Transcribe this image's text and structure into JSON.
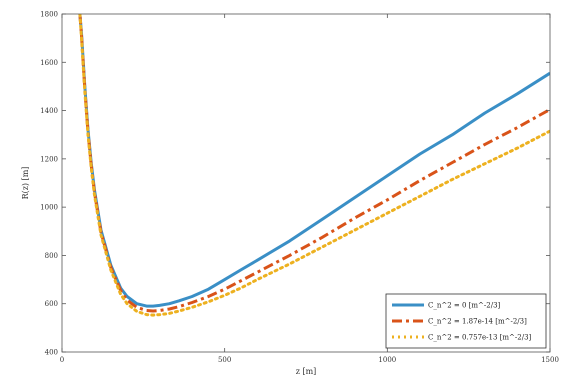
{
  "chart_data": {
    "type": "line",
    "xlabel": "z [m]",
    "ylabel": "R(z) [m]",
    "xlim": [
      0,
      1500
    ],
    "ylim": [
      400,
      1800
    ],
    "xticks": [
      0,
      500,
      1000,
      1500
    ],
    "yticks": [
      400,
      600,
      800,
      1000,
      1200,
      1400,
      1600,
      1800
    ],
    "grid": false,
    "legend_position": "bottom-right",
    "series": [
      {
        "name": "C_n^2 = 0 [m^-2/3]",
        "color": "#3a8fc6",
        "style": "solid",
        "x": [
          55,
          60,
          70,
          80,
          90,
          100,
          120,
          150,
          180,
          200,
          230,
          260,
          280,
          300,
          330,
          360,
          400,
          450,
          500,
          550,
          600,
          700,
          800,
          900,
          1000,
          1100,
          1200,
          1300,
          1400,
          1500
        ],
        "y": [
          1800,
          1720,
          1500,
          1320,
          1180,
          1070,
          905,
          760,
          665,
          630,
          600,
          590,
          590,
          593,
          600,
          612,
          630,
          660,
          700,
          740,
          780,
          860,
          950,
          1040,
          1130,
          1220,
          1300,
          1390,
          1470,
          1555
        ]
      },
      {
        "name": "C_n^2 = 1.87e-14 [m^-2/3]",
        "color": "#d95319",
        "style": "dashdot",
        "x": [
          55,
          60,
          70,
          80,
          90,
          100,
          120,
          150,
          180,
          200,
          230,
          260,
          280,
          300,
          330,
          360,
          400,
          450,
          500,
          550,
          600,
          700,
          800,
          900,
          1000,
          1100,
          1200,
          1300,
          1400,
          1500
        ],
        "y": [
          1800,
          1710,
          1490,
          1310,
          1170,
          1060,
          895,
          750,
          655,
          615,
          585,
          572,
          570,
          572,
          578,
          588,
          605,
          630,
          660,
          695,
          730,
          800,
          875,
          955,
          1030,
          1110,
          1185,
          1260,
          1330,
          1405
        ]
      },
      {
        "name": "C_n^2 = 0.757e-13 [m^-2/3]",
        "color": "#edb120",
        "style": "dotted",
        "x": [
          55,
          60,
          70,
          80,
          90,
          100,
          120,
          150,
          180,
          200,
          230,
          260,
          280,
          300,
          330,
          360,
          400,
          450,
          500,
          550,
          600,
          700,
          800,
          900,
          1000,
          1100,
          1200,
          1300,
          1400,
          1500
        ],
        "y": [
          1800,
          1700,
          1480,
          1300,
          1160,
          1050,
          885,
          740,
          640,
          600,
          568,
          555,
          553,
          555,
          560,
          570,
          585,
          608,
          635,
          665,
          700,
          765,
          835,
          905,
          975,
          1045,
          1115,
          1180,
          1245,
          1315
        ]
      }
    ]
  }
}
